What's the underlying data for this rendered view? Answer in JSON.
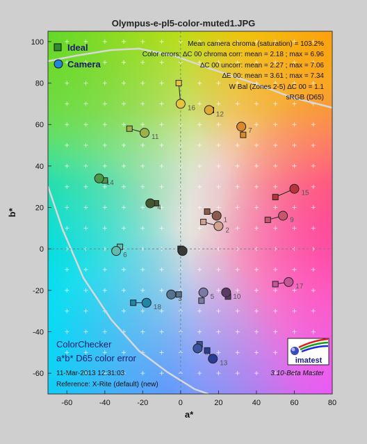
{
  "window_title": "Olympus-e-pl5-color-muted1.JPG",
  "chart_data": {
    "type": "scatter",
    "title": "Olympus-e-pl5-color-muted1.JPG",
    "xlabel": "a*",
    "ylabel": "b*",
    "xlim": [
      -70,
      80
    ],
    "ylim": [
      -70,
      105
    ],
    "xticks": [
      -60,
      -40,
      -20,
      0,
      20,
      40,
      60,
      80
    ],
    "yticks": [
      -60,
      -40,
      -20,
      0,
      20,
      40,
      60,
      80,
      100
    ],
    "grid": true,
    "legend": {
      "position": "top-left",
      "entries": [
        {
          "name": "Ideal",
          "marker": "square"
        },
        {
          "name": "Camera",
          "marker": "circle"
        }
      ]
    },
    "stats": [
      "Mean camera chroma (saturation) = 103.2%",
      "Color errors: ∆C 00 chroma corr:  mean = 2.18 ;  max = 6.96",
      "∆C 00 uncorr:  mean = 2.27 ;  max = 7.06",
      "∆E 00:  mean = 3.61 ;  max = 7.34",
      "W Bal (Zones 2-5) ∆C 00 = 1.1",
      "sRGB (D65)"
    ],
    "bottom_left_text": [
      "ColorChecker",
      "a*b* D65 color error",
      "11-Mar-2013 12:31:03",
      "Reference: X-Rite (default) (new)"
    ],
    "logo_text": "imatest",
    "version_text": "3.10-Beta  Master",
    "patches": [
      {
        "label": "1",
        "ideal": [
          14,
          18
        ],
        "camera": [
          19,
          16
        ],
        "color": "#8a5a4a"
      },
      {
        "label": "2",
        "ideal": [
          12,
          13
        ],
        "camera": [
          20,
          11
        ],
        "color": "#d1a08e"
      },
      {
        "label": "3",
        "ideal": [
          -1,
          -22
        ],
        "camera": [
          -5,
          -22
        ],
        "color": "#55728f"
      },
      {
        "label": "4",
        "ideal": [
          -13,
          22
        ],
        "camera": [
          -16,
          22
        ],
        "color": "#42582c"
      },
      {
        "label": "5",
        "ideal": [
          11,
          -25
        ],
        "camera": [
          12,
          -21
        ],
        "color": "#7a7aa6"
      },
      {
        "label": "6",
        "ideal": [
          -32,
          1
        ],
        "camera": [
          -34,
          -1
        ],
        "color": "#5fbcae"
      },
      {
        "label": "7",
        "ideal": [
          33,
          55
        ],
        "camera": [
          32,
          59
        ],
        "color": "#d9892a"
      },
      {
        "label": "8",
        "ideal": [
          10,
          -46
        ],
        "camera": [
          9,
          -48
        ],
        "color": "#3c55a0"
      },
      {
        "label": "9",
        "ideal": [
          46,
          14
        ],
        "camera": [
          54,
          16
        ],
        "color": "#c7566c"
      },
      {
        "label": "10",
        "ideal": [
          25,
          -23
        ],
        "camera": [
          24,
          -21
        ],
        "color": "#5a3a66"
      },
      {
        "label": "11",
        "ideal": [
          -27,
          58
        ],
        "camera": [
          -19,
          56
        ],
        "color": "#9ab247"
      },
      {
        "label": "12",
        "ideal": [
          16,
          67
        ],
        "camera": [
          15,
          67
        ],
        "color": "#e2a832"
      },
      {
        "label": "13",
        "ideal": [
          14,
          -49
        ],
        "camera": [
          17,
          -53
        ],
        "color": "#2a3d96"
      },
      {
        "label": "14",
        "ideal": [
          -40,
          33
        ],
        "camera": [
          -43,
          34
        ],
        "color": "#4a9848"
      },
      {
        "label": "15",
        "ideal": [
          50,
          25
        ],
        "camera": [
          60,
          29
        ],
        "color": "#b8343a"
      },
      {
        "label": "16",
        "ideal": [
          -1,
          80
        ],
        "camera": [
          0,
          70
        ],
        "color": "#e8c43a"
      },
      {
        "label": "17",
        "ideal": [
          50,
          -17
        ],
        "camera": [
          57,
          -16
        ],
        "color": "#c25696"
      },
      {
        "label": "18",
        "ideal": [
          -25,
          -26
        ],
        "camera": [
          -18,
          -26
        ],
        "color": "#1f86a8"
      }
    ],
    "neutrals": [
      {
        "ideal": [
          0,
          0
        ],
        "camera": [
          1,
          -1
        ],
        "color": "#f2f2f2"
      },
      {
        "ideal": [
          0,
          0
        ],
        "camera": [
          1,
          -1
        ],
        "color": "#3a3a3a"
      }
    ]
  }
}
